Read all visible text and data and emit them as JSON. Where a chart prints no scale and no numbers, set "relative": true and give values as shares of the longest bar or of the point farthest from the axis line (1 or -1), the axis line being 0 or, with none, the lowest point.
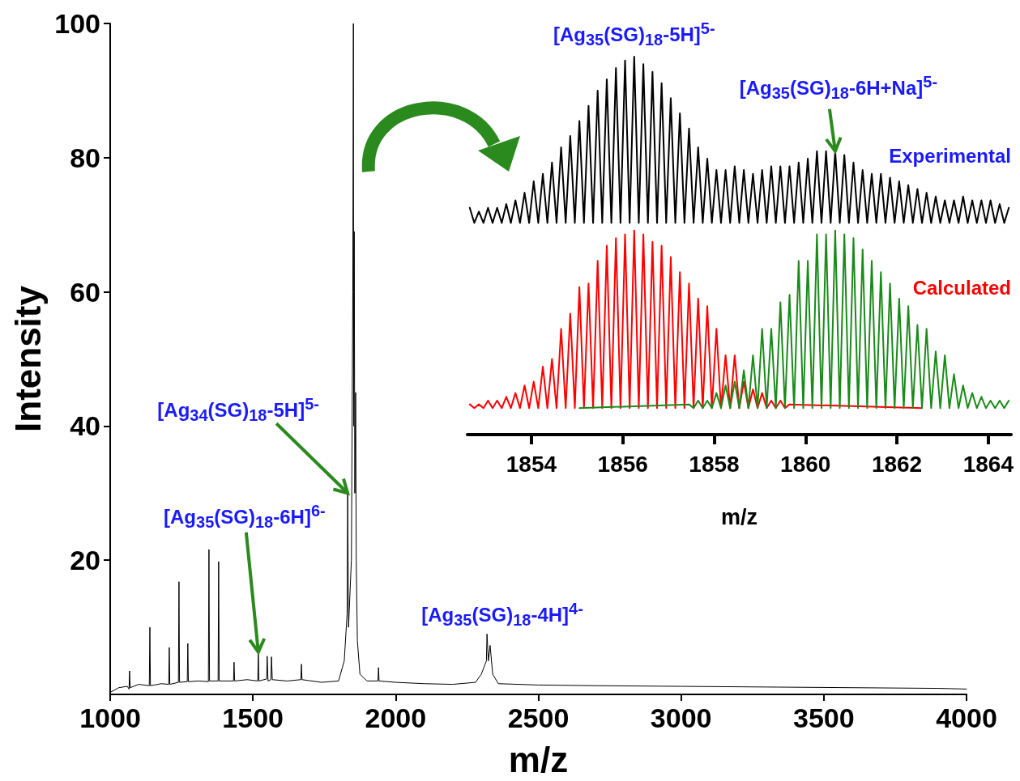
{
  "chart_data": [
    {
      "type": "line",
      "xlabel": "m/z",
      "ylabel": "Intensity",
      "color": "#000000",
      "x": [
        1000,
        1030,
        1060,
        1066,
        1068,
        1070,
        1100,
        1137,
        1139,
        1141,
        1180,
        1205,
        1207,
        1209,
        1239,
        1241,
        1243,
        1270,
        1272,
        1274,
        1310,
        1344,
        1346,
        1348,
        1378,
        1380,
        1382,
        1432,
        1434,
        1436,
        1480,
        1517,
        1519,
        1521,
        1548,
        1550,
        1553,
        1563,
        1565,
        1568,
        1620,
        1668,
        1670,
        1672,
        1740,
        1800,
        1820,
        1830,
        1832,
        1835,
        1845,
        1850,
        1852,
        1853,
        1855,
        1857,
        1860,
        1862,
        1866,
        1875,
        1900,
        1938,
        1940,
        1942,
        2000,
        2100,
        2200,
        2280,
        2300,
        2318,
        2320,
        2325,
        2331,
        2340,
        2360,
        2500,
        2700,
        3000,
        3300,
        3600,
        3900,
        4000
      ],
      "values": [
        0.3,
        1,
        1.2,
        0.8,
        3.5,
        1,
        1.5,
        1.3,
        10,
        1.3,
        1.6,
        1.5,
        7,
        1.5,
        1.8,
        16.8,
        1.8,
        1.9,
        7.6,
        1.9,
        2,
        1.9,
        21.6,
        2,
        2,
        19.8,
        2,
        2,
        4.8,
        2,
        2.2,
        2,
        6.3,
        2,
        2.3,
        5.7,
        2,
        2.2,
        5.6,
        2.2,
        2,
        2.2,
        4.5,
        2.2,
        1.8,
        2,
        5,
        12,
        30,
        10,
        20,
        60,
        100,
        40,
        69,
        30,
        45,
        20,
        8,
        3,
        2,
        2,
        4,
        2,
        1.8,
        1.6,
        1.5,
        1.8,
        3,
        5,
        9,
        5,
        7.3,
        3,
        1.6,
        1.4,
        1.3,
        1.2,
        1.1,
        1,
        0.9,
        0.8
      ],
      "xlim": [
        1000,
        4000
      ],
      "xticks": [
        1000,
        1500,
        2000,
        2500,
        3000,
        3500,
        4000
      ],
      "ylim": [
        0,
        100
      ],
      "yticks": [
        20,
        40,
        60,
        80,
        100
      ],
      "annotations": [
        {
          "text": "[Ag$_{34}$(SG)$_{18}$-5H]$^{5-}$",
          "x": 1832,
          "y": 30
        },
        {
          "text": "[Ag$_{35}$(SG)$_{18}$-6H]$^{6-}$",
          "x": 1519,
          "y": 6.3
        },
        {
          "text": "[Ag$_{35}$(SG)$_{18}$-4H]$^{4-}$",
          "x": 2320,
          "y": 9
        }
      ]
    },
    {
      "type": "line",
      "relative": true,
      "xlabel": "m/z",
      "xlim": [
        1852.6,
        1864.5
      ],
      "xticks": [
        1854,
        1856,
        1858,
        1860,
        1862,
        1864
      ],
      "series": [
        {
          "name": "Experimental",
          "color": "#000000",
          "x": [
            1852.65,
            1852.75,
            1852.85,
            1852.95,
            1853.05,
            1853.15,
            1853.25,
            1853.35,
            1853.45,
            1853.55,
            1853.65,
            1853.75,
            1853.85,
            1853.95,
            1854.05,
            1854.15,
            1854.25,
            1854.35,
            1854.45,
            1854.55,
            1854.65,
            1854.75,
            1854.85,
            1854.95,
            1855.05,
            1855.15,
            1855.25,
            1855.35,
            1855.45,
            1855.55,
            1855.65,
            1855.75,
            1855.85,
            1855.95,
            1856.05,
            1856.15,
            1856.25,
            1856.35,
            1856.45,
            1856.55,
            1856.65,
            1856.75,
            1856.85,
            1856.95,
            1857.05,
            1857.15,
            1857.25,
            1857.35,
            1857.45,
            1857.55,
            1857.65,
            1857.75,
            1857.85,
            1857.95,
            1858.05,
            1858.15,
            1858.25,
            1858.35,
            1858.45,
            1858.55,
            1858.65,
            1858.75,
            1858.85,
            1858.95,
            1859.05,
            1859.15,
            1859.25,
            1859.35,
            1859.45,
            1859.55,
            1859.65,
            1859.75,
            1859.85,
            1859.95,
            1860.05,
            1860.15,
            1860.25,
            1860.35,
            1860.45,
            1860.55,
            1860.65,
            1860.75,
            1860.85,
            1860.95,
            1861.05,
            1861.15,
            1861.25,
            1861.35,
            1861.45,
            1861.55,
            1861.65,
            1861.75,
            1861.85,
            1861.95,
            1862.05,
            1862.15,
            1862.25,
            1862.35,
            1862.45,
            1862.55,
            1862.65,
            1862.75,
            1862.85,
            1862.95,
            1863.05,
            1863.15,
            1863.25,
            1863.35,
            1863.45,
            1863.55,
            1863.65,
            1863.75,
            1863.85,
            1863.95,
            1864.05,
            1864.15,
            1864.25,
            1864.35,
            1864.45
          ],
          "values": [
            0.6,
            0.56,
            0.59,
            0.56,
            0.6,
            0.56,
            0.6,
            0.56,
            0.61,
            0.56,
            0.62,
            0.56,
            0.64,
            0.56,
            0.67,
            0.56,
            0.69,
            0.56,
            0.72,
            0.56,
            0.76,
            0.56,
            0.79,
            0.56,
            0.83,
            0.56,
            0.87,
            0.56,
            0.91,
            0.56,
            0.94,
            0.56,
            0.97,
            0.56,
            0.99,
            0.56,
            1,
            0.56,
            0.98,
            0.56,
            0.96,
            0.56,
            0.93,
            0.56,
            0.89,
            0.56,
            0.85,
            0.56,
            0.81,
            0.56,
            0.76,
            0.56,
            0.73,
            0.56,
            0.7,
            0.56,
            0.7,
            0.56,
            0.71,
            0.56,
            0.7,
            0.56,
            0.69,
            0.56,
            0.7,
            0.56,
            0.71,
            0.56,
            0.71,
            0.56,
            0.71,
            0.56,
            0.72,
            0.56,
            0.73,
            0.56,
            0.75,
            0.56,
            0.75,
            0.56,
            0.75,
            0.56,
            0.74,
            0.56,
            0.72,
            0.56,
            0.7,
            0.56,
            0.69,
            0.56,
            0.69,
            0.56,
            0.68,
            0.56,
            0.67,
            0.56,
            0.66,
            0.56,
            0.65,
            0.56,
            0.64,
            0.56,
            0.63,
            0.56,
            0.62,
            0.56,
            0.62,
            0.56,
            0.63,
            0.56,
            0.62,
            0.56,
            0.62,
            0.56,
            0.62,
            0.56,
            0.61,
            0.56,
            0.6
          ]
        },
        {
          "name": "Calculated",
          "color": "#ff0000",
          "x": [
            1852.65,
            1852.75,
            1852.85,
            1852.95,
            1853.05,
            1853.15,
            1853.25,
            1853.35,
            1853.45,
            1853.55,
            1853.65,
            1853.75,
            1853.85,
            1853.95,
            1854.05,
            1854.15,
            1854.25,
            1854.35,
            1854.45,
            1854.55,
            1854.65,
            1854.75,
            1854.85,
            1854.95,
            1855.05,
            1855.15,
            1855.25,
            1855.35,
            1855.45,
            1855.55,
            1855.65,
            1855.75,
            1855.85,
            1855.95,
            1856.05,
            1856.15,
            1856.25,
            1856.35,
            1856.45,
            1856.55,
            1856.65,
            1856.75,
            1856.85,
            1856.95,
            1857.05,
            1857.15,
            1857.25,
            1857.35,
            1857.45,
            1857.55,
            1857.65,
            1857.75,
            1857.85,
            1857.95,
            1858.05,
            1858.15,
            1858.25,
            1858.35,
            1858.45,
            1858.55,
            1858.65,
            1858.75,
            1858.85,
            1858.95,
            1859.05,
            1859.15,
            1859.25,
            1859.35,
            1859.45,
            1859.55,
            1859.65,
            1862.55
          ],
          "values": [
            0.08,
            0.07,
            0.08,
            0.07,
            0.09,
            0.07,
            0.09,
            0.07,
            0.1,
            0.07,
            0.11,
            0.07,
            0.13,
            0.07,
            0.14,
            0.07,
            0.18,
            0.07,
            0.2,
            0.07,
            0.28,
            0.07,
            0.32,
            0.07,
            0.39,
            0.07,
            0.4,
            0.07,
            0.46,
            0.07,
            0.5,
            0.07,
            0.52,
            0.07,
            0.53,
            0.07,
            0.54,
            0.07,
            0.53,
            0.07,
            0.51,
            0.07,
            0.5,
            0.07,
            0.47,
            0.07,
            0.43,
            0.07,
            0.4,
            0.07,
            0.36,
            0.07,
            0.34,
            0.07,
            0.28,
            0.07,
            0.21,
            0.07,
            0.21,
            0.07,
            0.14,
            0.07,
            0.12,
            0.07,
            0.11,
            0.07,
            0.09,
            0.07,
            0.09,
            0.07,
            0.08,
            0.07
          ]
        },
        {
          "color": "#1a8a1a",
          "x": [
            1855.05,
            1857.45,
            1857.55,
            1857.65,
            1857.75,
            1857.85,
            1857.95,
            1858.05,
            1858.15,
            1858.25,
            1858.35,
            1858.45,
            1858.55,
            1858.65,
            1858.75,
            1858.85,
            1858.95,
            1859.05,
            1859.15,
            1859.25,
            1859.35,
            1859.45,
            1859.55,
            1859.65,
            1859.75,
            1859.85,
            1859.95,
            1860.05,
            1860.15,
            1860.25,
            1860.35,
            1860.45,
            1860.55,
            1860.65,
            1860.75,
            1860.85,
            1860.95,
            1861.05,
            1861.15,
            1861.25,
            1861.35,
            1861.45,
            1861.55,
            1861.65,
            1861.75,
            1861.85,
            1861.95,
            1862.05,
            1862.15,
            1862.25,
            1862.35,
            1862.45,
            1862.55,
            1862.65,
            1862.75,
            1862.85,
            1862.95,
            1863.05,
            1863.15,
            1863.25,
            1863.35,
            1863.45,
            1863.55,
            1863.65,
            1863.75,
            1863.85,
            1863.95,
            1864.05,
            1864.15,
            1864.25,
            1864.35,
            1864.45
          ],
          "values": [
            0.07,
            0.08,
            0.07,
            0.09,
            0.07,
            0.09,
            0.07,
            0.11,
            0.07,
            0.13,
            0.07,
            0.14,
            0.07,
            0.17,
            0.07,
            0.21,
            0.07,
            0.28,
            0.07,
            0.28,
            0.07,
            0.35,
            0.07,
            0.37,
            0.07,
            0.46,
            0.07,
            0.46,
            0.07,
            0.53,
            0.07,
            0.53,
            0.07,
            0.54,
            0.07,
            0.53,
            0.07,
            0.52,
            0.07,
            0.49,
            0.07,
            0.46,
            0.07,
            0.43,
            0.07,
            0.4,
            0.07,
            0.36,
            0.07,
            0.34,
            0.07,
            0.29,
            0.07,
            0.28,
            0.07,
            0.22,
            0.07,
            0.21,
            0.07,
            0.16,
            0.07,
            0.13,
            0.07,
            0.11,
            0.07,
            0.1,
            0.07,
            0.09,
            0.07,
            0.09,
            0.07,
            0.09
          ]
        }
      ],
      "annotations": [
        {
          "text": "[Ag$_{35}$(SG)$_{18}$-5H]$^{5-}$",
          "x": 1856.25,
          "y": 1
        },
        {
          "text": "[Ag$_{35}$(SG)$_{18}$-6H+Na]$^{5-}$",
          "x": 1860.65,
          "y": 0.75
        }
      ]
    }
  ]
}
